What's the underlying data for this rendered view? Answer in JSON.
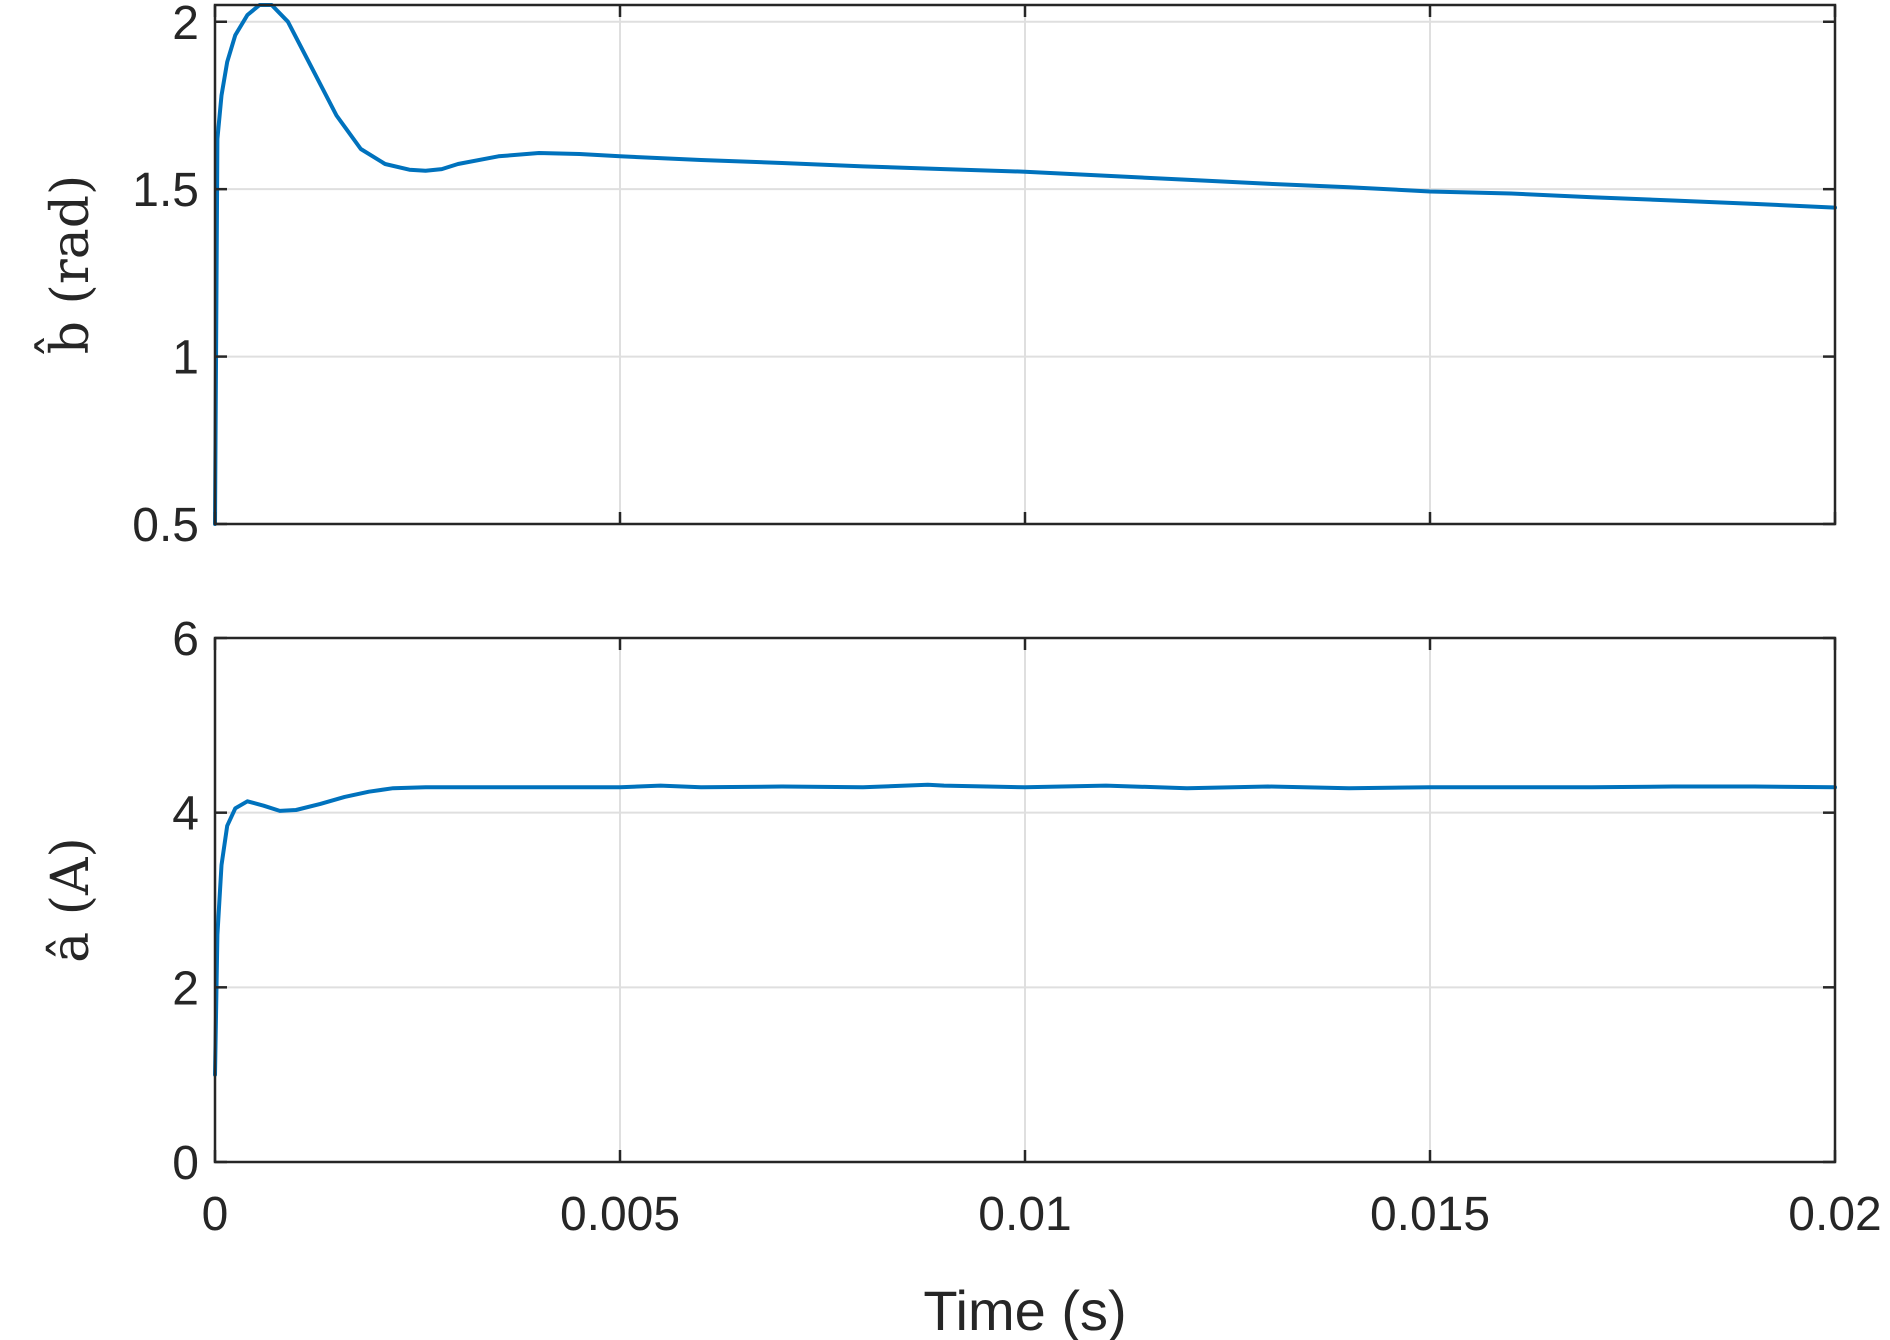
{
  "chart_data": [
    {
      "type": "line",
      "ylabel": "b̂ (rad)",
      "xlabel": "",
      "xlim": [
        0,
        0.02
      ],
      "ylim": [
        0.5,
        2.05
      ],
      "xticks": [
        0,
        0.005,
        0.01,
        0.015,
        0.02
      ],
      "yticks": [
        0.5,
        1,
        1.5,
        2
      ],
      "yticklabels": [
        "0.5",
        "1",
        "1.5",
        "2"
      ],
      "show_xticklabels": false,
      "grid": true,
      "color": "#0072BD",
      "series": [
        {
          "x": [
            0,
            3e-05,
            8e-05,
            0.00015,
            0.00025,
            0.0004,
            0.00055,
            0.0007,
            0.0009,
            0.0012,
            0.0015,
            0.0018,
            0.0021,
            0.0024,
            0.0026,
            0.0028,
            0.003,
            0.0035,
            0.004,
            0.0045,
            0.005,
            0.006,
            0.007,
            0.008,
            0.009,
            0.01,
            0.011,
            0.012,
            0.013,
            0.014,
            0.015,
            0.016,
            0.017,
            0.018,
            0.019,
            0.02
          ],
          "y": [
            0.5,
            1.65,
            1.78,
            1.88,
            1.96,
            2.02,
            2.05,
            2.05,
            2.0,
            1.86,
            1.72,
            1.62,
            1.575,
            1.558,
            1.555,
            1.56,
            1.575,
            1.598,
            1.608,
            1.605,
            1.598,
            1.587,
            1.578,
            1.568,
            1.56,
            1.552,
            1.54,
            1.528,
            1.516,
            1.506,
            1.493,
            1.487,
            1.476,
            1.466,
            1.456,
            1.445
          ]
        }
      ]
    },
    {
      "type": "line",
      "ylabel": "â (A)",
      "xlabel": "Time (s)",
      "xlim": [
        0,
        0.02
      ],
      "ylim": [
        0,
        6
      ],
      "xticks": [
        0,
        0.005,
        0.01,
        0.015,
        0.02
      ],
      "xticklabels": [
        "0",
        "0.005",
        "0.01",
        "0.015",
        "0.02"
      ],
      "yticks": [
        0,
        2,
        4,
        6
      ],
      "yticklabels": [
        "0",
        "2",
        "4",
        "6"
      ],
      "show_xticklabels": true,
      "grid": true,
      "color": "#0072BD",
      "series": [
        {
          "x": [
            0,
            3e-05,
            8e-05,
            0.00015,
            0.00025,
            0.0004,
            0.0006,
            0.0008,
            0.001,
            0.0013,
            0.0016,
            0.0019,
            0.0022,
            0.0026,
            0.003,
            0.004,
            0.005,
            0.0055,
            0.006,
            0.007,
            0.008,
            0.0088,
            0.009,
            0.01,
            0.011,
            0.012,
            0.013,
            0.014,
            0.015,
            0.016,
            0.017,
            0.018,
            0.019,
            0.02
          ],
          "y": [
            1.0,
            2.6,
            3.4,
            3.85,
            4.05,
            4.13,
            4.08,
            4.02,
            4.03,
            4.1,
            4.18,
            4.24,
            4.28,
            4.29,
            4.29,
            4.29,
            4.29,
            4.31,
            4.29,
            4.3,
            4.29,
            4.32,
            4.31,
            4.29,
            4.31,
            4.28,
            4.3,
            4.28,
            4.29,
            4.29,
            4.29,
            4.3,
            4.3,
            4.29
          ]
        }
      ]
    }
  ]
}
